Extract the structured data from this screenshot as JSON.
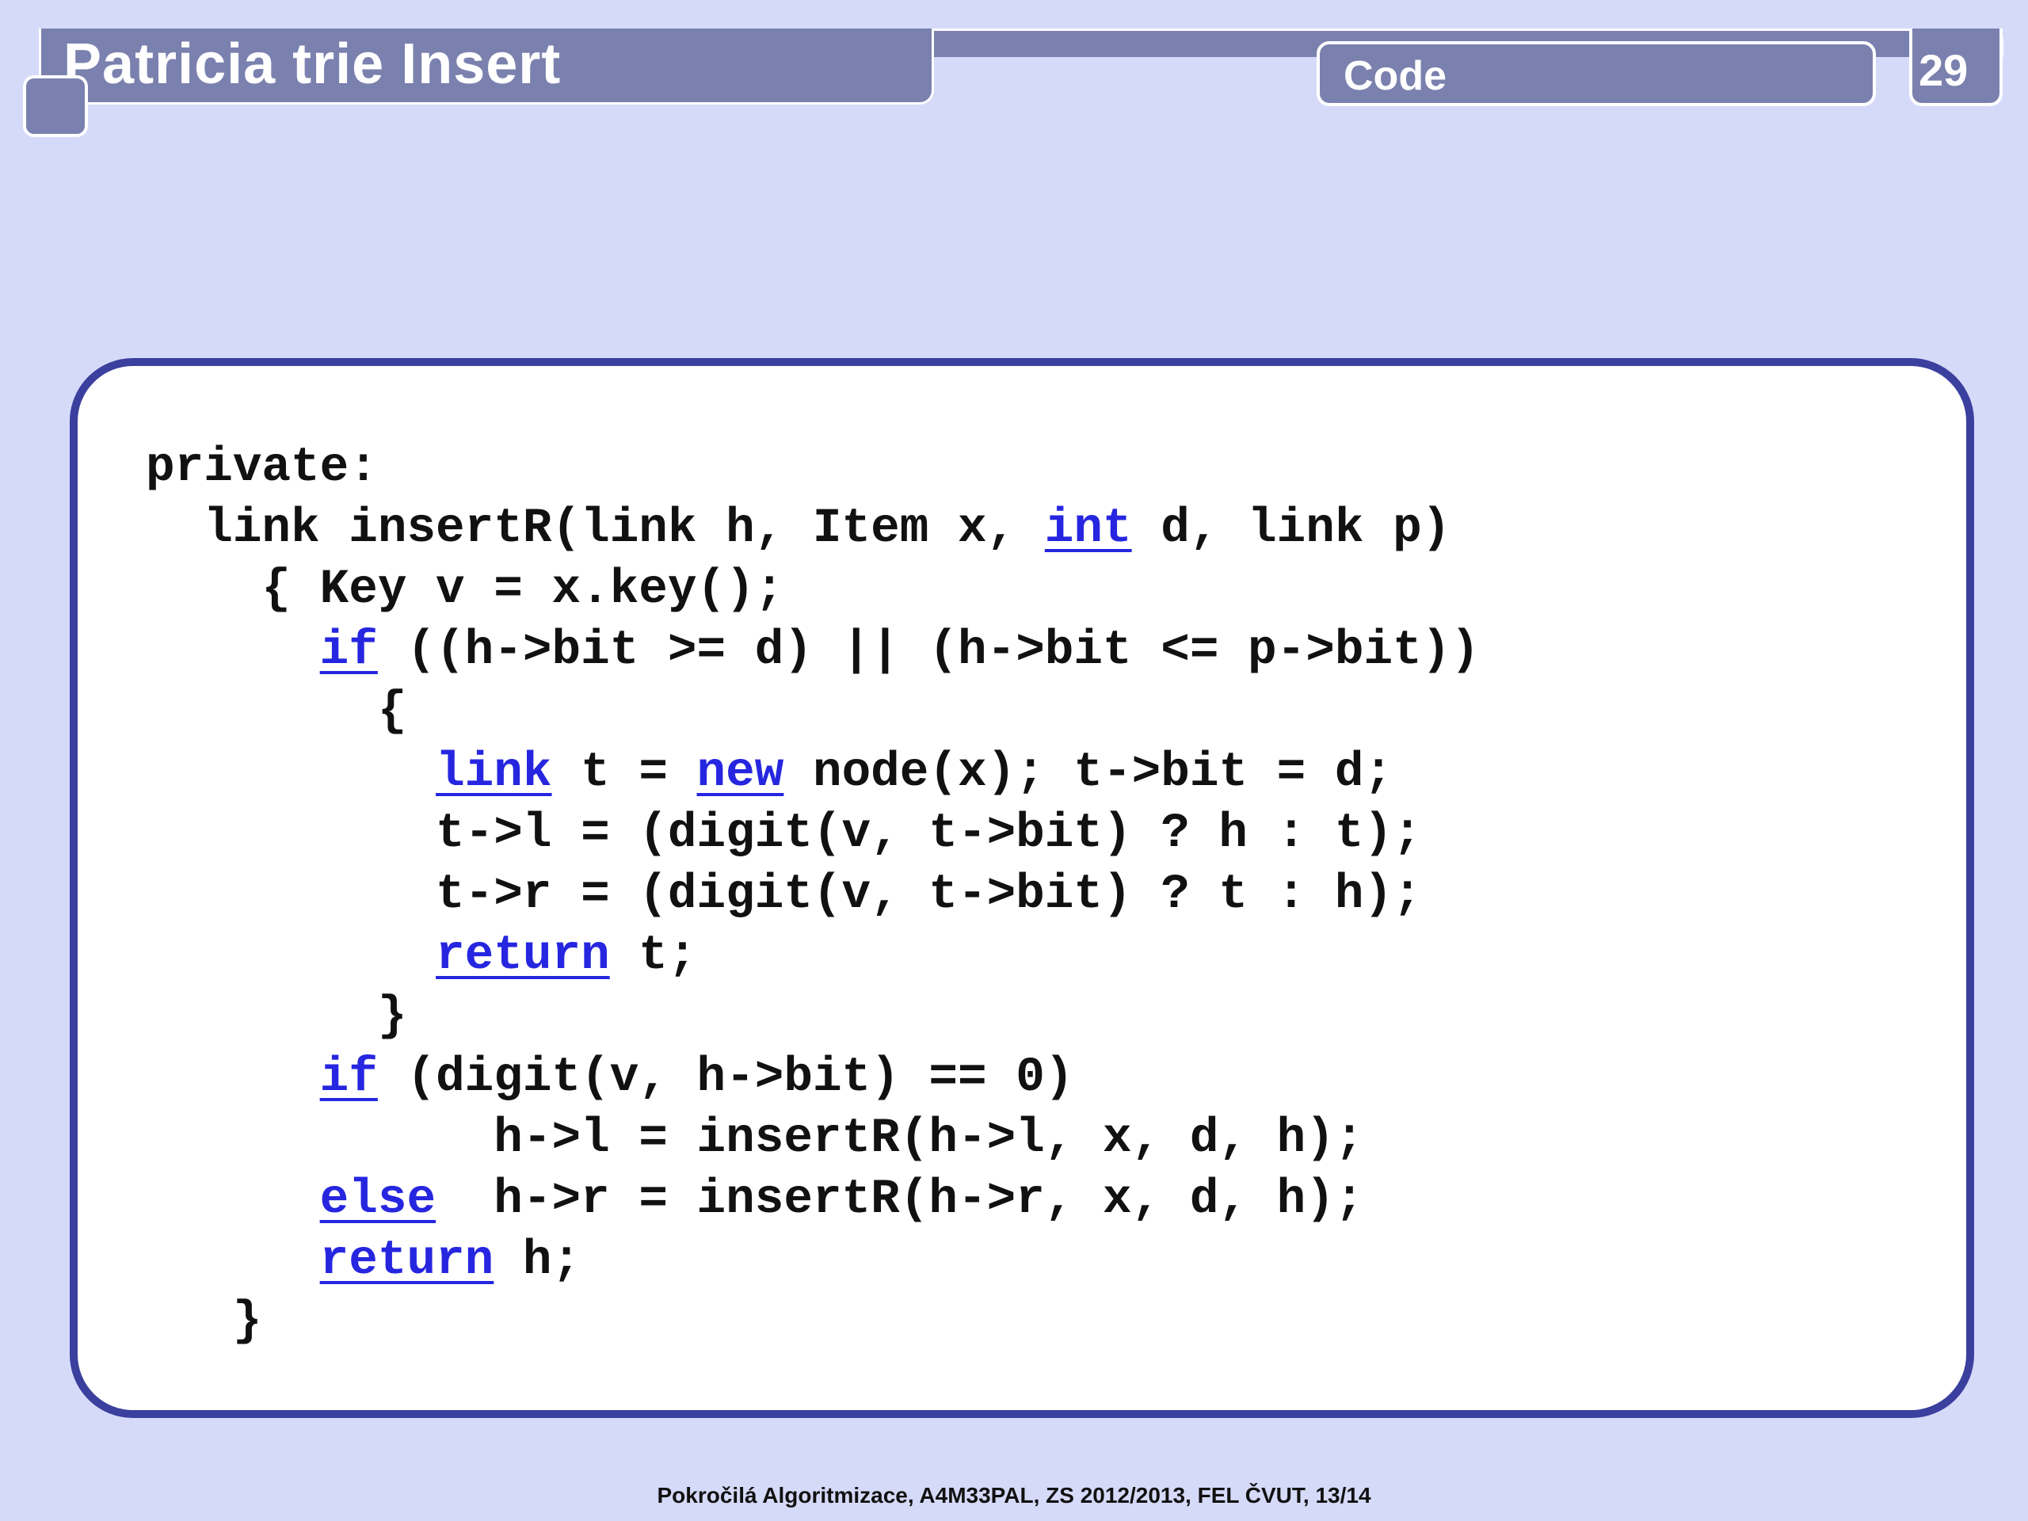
{
  "header": {
    "title": "Patricia trie Insert",
    "section": "Code",
    "page_number": "29"
  },
  "code": {
    "keyword_color": "#2626e0",
    "lines": [
      [
        {
          "t": "private:"
        }
      ],
      [
        {
          "t": "  link insertR(link h, Item x, "
        },
        {
          "t": "int",
          "kw": true
        },
        {
          "t": " d, link p)"
        }
      ],
      [
        {
          "t": "    { Key v = x.key();"
        }
      ],
      [
        {
          "t": "      "
        },
        {
          "t": "if",
          "kw": true
        },
        {
          "t": " ((h->bit >= d) || (h->bit <= p->bit))"
        }
      ],
      [
        {
          "t": "        {"
        }
      ],
      [
        {
          "t": "          "
        },
        {
          "t": "link",
          "kw": true
        },
        {
          "t": " t = "
        },
        {
          "t": "new",
          "kw": true
        },
        {
          "t": " node(x); t->bit = d;"
        }
      ],
      [
        {
          "t": "          t->l = (digit(v, t->bit) ? h : t);"
        }
      ],
      [
        {
          "t": "          t->r = (digit(v, t->bit) ? t : h);"
        }
      ],
      [
        {
          "t": "          "
        },
        {
          "t": "return",
          "kw": true
        },
        {
          "t": " t;"
        }
      ],
      [
        {
          "t": "        }"
        }
      ],
      [
        {
          "t": "      "
        },
        {
          "t": "if",
          "kw": true
        },
        {
          "t": " (digit(v, h->bit) == 0)"
        }
      ],
      [
        {
          "t": "            h->l = insertR(h->l, x, d, h);"
        }
      ],
      [
        {
          "t": "      "
        },
        {
          "t": "else",
          "kw": true
        },
        {
          "t": "  h->r = insertR(h->r, x, d, h);"
        }
      ],
      [
        {
          "t": "      "
        },
        {
          "t": "return",
          "kw": true
        },
        {
          "t": " h;"
        }
      ],
      [
        {
          "t": "   }"
        }
      ]
    ]
  },
  "footer": {
    "text": "Pokročilá Algoritmizace, A4M33PAL, ZS 2012/2013, FEL ČVUT,  13/14"
  }
}
